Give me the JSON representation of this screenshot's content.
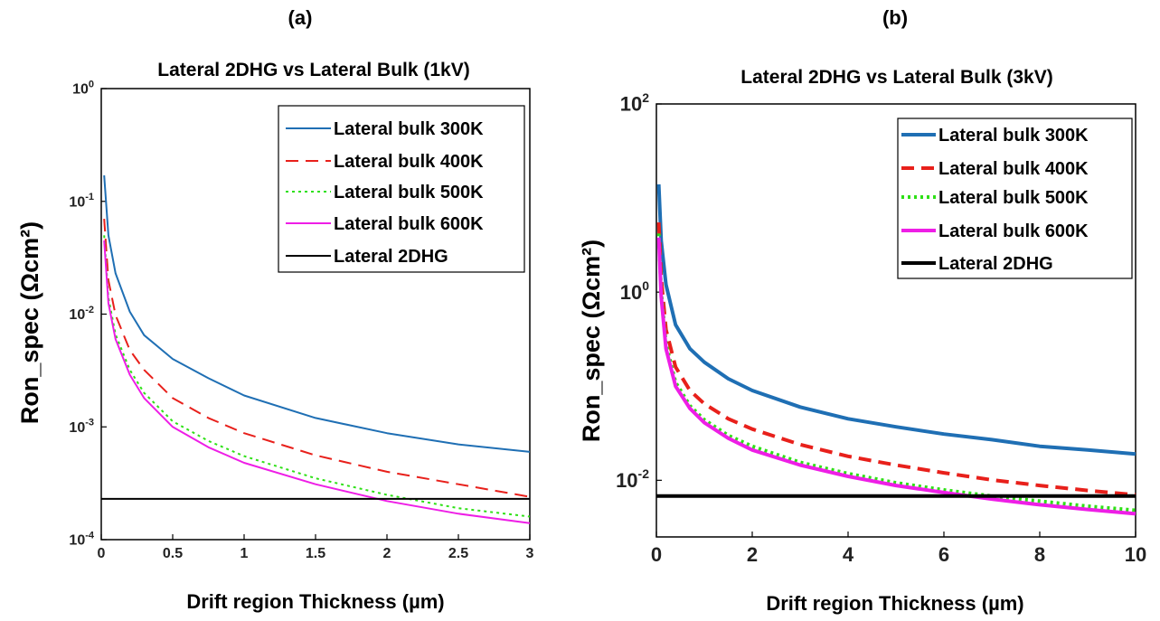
{
  "panels": {
    "a": {
      "label": "(a)"
    },
    "b": {
      "label": "(b)"
    }
  },
  "chart_data": [
    {
      "type": "line",
      "panel": "(a)",
      "title": "Lateral 2DHG vs Lateral Bulk (1kV)",
      "xlabel": "Drift region Thickness (µm)",
      "ylabel": "Ron_spec (Ωcm²)",
      "xlim": [
        0,
        3
      ],
      "ylim": [
        0.0001,
        1
      ],
      "yscale": "log",
      "xticks": [
        "0",
        "0.5",
        "1",
        "1.5",
        "2",
        "2.5",
        "3"
      ],
      "yticks": [
        {
          "base": "10",
          "exp": "-4"
        },
        {
          "base": "10",
          "exp": "-3"
        },
        {
          "base": "10",
          "exp": "-2"
        },
        {
          "base": "10",
          "exp": "-1"
        },
        {
          "base": "10",
          "exp": "0"
        }
      ],
      "grid": false,
      "legend_position": "top-right",
      "series": [
        {
          "name": "Lateral bulk 300K",
          "color": "#1f6fb4",
          "style": "solid",
          "x": [
            0.02,
            0.05,
            0.1,
            0.2,
            0.3,
            0.5,
            0.75,
            1,
            1.5,
            2,
            2.5,
            3
          ],
          "y": [
            0.17,
            0.05,
            0.023,
            0.0105,
            0.0065,
            0.004,
            0.0027,
            0.0019,
            0.0012,
            0.00088,
            0.0007,
            0.0006
          ]
        },
        {
          "name": "Lateral bulk 400K",
          "color": "#e8201b",
          "style": "dashed",
          "x": [
            0.02,
            0.05,
            0.1,
            0.2,
            0.3,
            0.5,
            0.75,
            1,
            1.5,
            2,
            2.5,
            3
          ],
          "y": [
            0.07,
            0.02,
            0.0098,
            0.0048,
            0.0032,
            0.0018,
            0.0012,
            0.00088,
            0.00056,
            0.0004,
            0.00031,
            0.00024
          ]
        },
        {
          "name": "Lateral bulk 500K",
          "color": "#2ee016",
          "style": "dotted",
          "x": [
            0.02,
            0.05,
            0.1,
            0.2,
            0.3,
            0.5,
            0.75,
            1,
            1.5,
            2,
            2.5,
            3
          ],
          "y": [
            0.05,
            0.014,
            0.0066,
            0.0032,
            0.002,
            0.00112,
            0.00075,
            0.00055,
            0.00035,
            0.00025,
            0.00019,
            0.00016
          ]
        },
        {
          "name": "Lateral bulk 600K",
          "color": "#ee1ee6",
          "style": "solid",
          "x": [
            0.02,
            0.05,
            0.1,
            0.2,
            0.3,
            0.5,
            0.75,
            1,
            1.5,
            2,
            2.5,
            3
          ],
          "y": [
            0.045,
            0.0125,
            0.006,
            0.0029,
            0.0018,
            0.001,
            0.00066,
            0.00048,
            0.00031,
            0.00022,
            0.00017,
            0.00014
          ]
        },
        {
          "name": "Lateral 2DHG",
          "color": "#000000",
          "style": "solid",
          "x": [
            0,
            3
          ],
          "y": [
            0.00023,
            0.00023
          ]
        }
      ]
    },
    {
      "type": "line",
      "panel": "(b)",
      "title": "Lateral 2DHG vs Lateral Bulk (3kV)",
      "xlabel": "Drift region Thickness (µm)",
      "ylabel": "Ron_spec (Ωcm²)",
      "xlim": [
        0,
        10
      ],
      "ylim": [
        0.0025,
        100
      ],
      "yscale": "log",
      "xticks": [
        "0",
        "2",
        "4",
        "6",
        "8",
        "10"
      ],
      "yticks": [
        {
          "base": "10",
          "exp": "-2"
        },
        {
          "base": "10",
          "exp": "0"
        },
        {
          "base": "10",
          "exp": "2"
        }
      ],
      "grid": false,
      "legend_position": "top-right",
      "series": [
        {
          "name": "Lateral bulk 300K",
          "color": "#1f6fb4",
          "style": "solid",
          "x": [
            0.05,
            0.1,
            0.2,
            0.4,
            0.7,
            1,
            1.5,
            2,
            3,
            4,
            5,
            6,
            7,
            8,
            9,
            10
          ],
          "y": [
            14,
            3.5,
            1.2,
            0.45,
            0.25,
            0.18,
            0.12,
            0.09,
            0.06,
            0.045,
            0.037,
            0.031,
            0.027,
            0.023,
            0.021,
            0.019
          ]
        },
        {
          "name": "Lateral bulk 400K",
          "color": "#e8201b",
          "style": "dashed",
          "x": [
            0.05,
            0.1,
            0.2,
            0.4,
            0.7,
            1,
            1.5,
            2,
            3,
            4,
            5,
            6,
            7,
            8,
            9,
            10
          ],
          "y": [
            5.5,
            1.4,
            0.4,
            0.16,
            0.09,
            0.065,
            0.045,
            0.035,
            0.024,
            0.018,
            0.0145,
            0.012,
            0.0101,
            0.0088,
            0.0078,
            0.007
          ]
        },
        {
          "name": "Lateral bulk 500K",
          "color": "#2ee016",
          "style": "dotted",
          "x": [
            0.05,
            0.1,
            0.2,
            0.4,
            0.7,
            1,
            1.5,
            2,
            3,
            4,
            5,
            6,
            7,
            8,
            9,
            10
          ],
          "y": [
            4.2,
            1.0,
            0.28,
            0.11,
            0.062,
            0.044,
            0.03,
            0.023,
            0.0155,
            0.0118,
            0.0094,
            0.0079,
            0.0068,
            0.006,
            0.0053,
            0.0048
          ]
        },
        {
          "name": "Lateral bulk 600K",
          "color": "#ee1ee6",
          "style": "solid",
          "x": [
            0.05,
            0.1,
            0.2,
            0.4,
            0.7,
            1,
            1.5,
            2,
            3,
            4,
            5,
            6,
            7,
            8,
            9,
            10
          ],
          "y": [
            3.8,
            0.9,
            0.25,
            0.1,
            0.058,
            0.041,
            0.028,
            0.021,
            0.0145,
            0.011,
            0.0088,
            0.0074,
            0.0063,
            0.0055,
            0.0049,
            0.0044
          ]
        },
        {
          "name": "Lateral 2DHG",
          "color": "#000000",
          "style": "solid",
          "x": [
            0,
            10
          ],
          "y": [
            0.0068,
            0.0068
          ]
        }
      ]
    }
  ]
}
